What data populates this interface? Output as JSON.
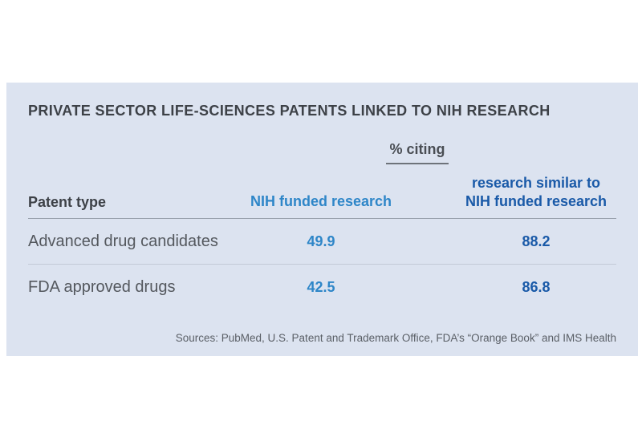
{
  "chart_data": {
    "type": "table",
    "title": "PRIVATE SECTOR LIFE-SCIENCES PATENTS LINKED TO NIH RESEARCH",
    "column_group_header": "% citing",
    "row_header_label": "Patent type",
    "columns": [
      {
        "label": "NIH funded research",
        "color": "#2e86c8"
      },
      {
        "label": "research similar to\nNIH funded research",
        "color": "#1a5aa8"
      }
    ],
    "rows": [
      {
        "label": "Advanced drug candidates",
        "values": [
          49.9,
          88.2
        ]
      },
      {
        "label": "FDA approved drugs",
        "values": [
          42.5,
          86.8
        ]
      }
    ],
    "source_note": "Sources: PubMed, U.S. Patent and Trademark Office, FDA’s “Orange Book” and IMS Health",
    "layout": {
      "panel_background": "#dce3f0",
      "grid": "horizontal-row-separators",
      "legend_position": "none",
      "value_format": "percent"
    }
  }
}
